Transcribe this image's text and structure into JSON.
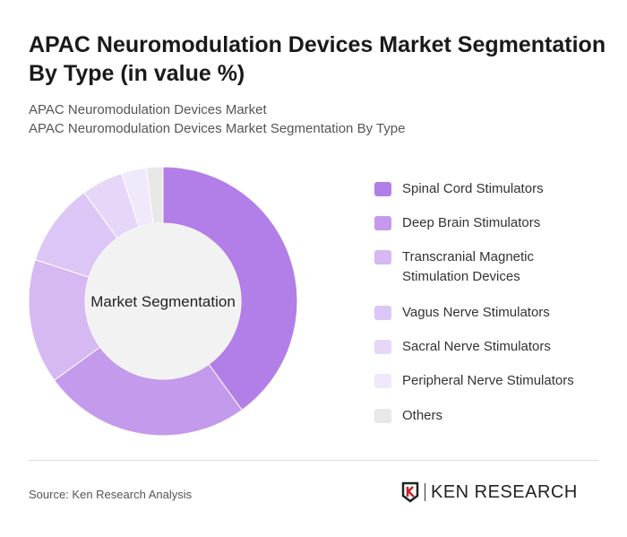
{
  "title": "APAC Neuromodulation Devices Market Segmentation By Type (in value %)",
  "subtitle1": "APAC Neuromodulation Devices Market",
  "subtitle2": "APAC Neuromodulation Devices Market Segmentation By Type",
  "source": "Source: Ken Research Analysis",
  "logo_text": "KEN RESEARCH",
  "chart_data": {
    "type": "pie",
    "variant": "donut",
    "center_label": "Market Segmentation",
    "legend_position": "right",
    "categories": [
      "Spinal Cord Stimulators",
      "Deep Brain Stimulators",
      "Transcranial Magnetic Stimulation Devices",
      "Vagus Nerve Stimulators",
      "Sacral Nerve Stimulators",
      "Peripheral Nerve Stimulators",
      "Others"
    ],
    "values": [
      40,
      25,
      15,
      10,
      5,
      3,
      2
    ],
    "colors": [
      "#b27ee8",
      "#c49aec",
      "#d6b8f3",
      "#dcc6f5",
      "#e6d6f8",
      "#f0e8fb",
      "#e8e8e8"
    ]
  }
}
